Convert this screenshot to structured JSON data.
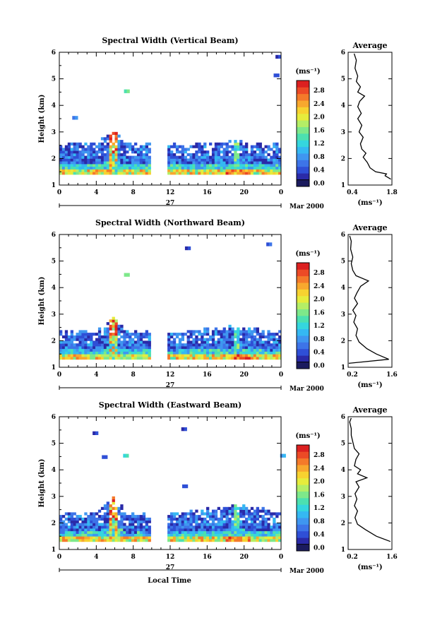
{
  "chart_data": [
    {
      "type": "heatmap",
      "title": "Spectral Width (Vertical Beam)",
      "ylabel": "Height (km)",
      "ylim": [
        1,
        6
      ],
      "xlim": [
        0,
        24
      ],
      "x_ticks": [
        "0",
        "4",
        "8",
        "12",
        "16",
        "20",
        "0"
      ],
      "y_ticks": [
        "1",
        "2",
        "3",
        "4",
        "5",
        "6"
      ],
      "date_label": "27",
      "date_suffix": "Mar 2000",
      "data_gap": [
        9.8,
        11.5
      ],
      "tops": [
        {
          "x": 0,
          "h": 2.5
        },
        {
          "x": 4,
          "h": 2.5
        },
        {
          "x": 5.6,
          "h": 3.1
        },
        {
          "x": 7.2,
          "h": 2.5
        },
        {
          "x": 12,
          "h": 2.45
        },
        {
          "x": 18.5,
          "h": 2.55
        },
        {
          "x": 23.8,
          "h": 2.5
        }
      ],
      "bottoms": [
        {
          "x": 0,
          "h": 1.4
        },
        {
          "x": 23.9,
          "h": 1.4
        }
      ],
      "blobs": [
        {
          "x": 7.0,
          "h": 4.5,
          "v": 1.4
        },
        {
          "x": 1.4,
          "h": 3.5,
          "v": 0.6
        },
        {
          "x": 23.4,
          "h": 5.8,
          "v": 0.3
        },
        {
          "x": 23.2,
          "h": 5.1,
          "v": 0.4
        }
      ],
      "colorbar": {
        "label": "(ms⁻¹)",
        "ticks": [
          "2.8",
          "2.4",
          "2.0",
          "1.6",
          "1.2",
          "0.8",
          "0.4",
          "0.0"
        ],
        "max": 3.0
      },
      "profile": {
        "title": "Average",
        "xlabel": "(ms⁻¹)",
        "x_ticks": [
          "0.4",
          "1.8"
        ],
        "xlim": [
          0.2,
          1.8
        ],
        "ylim": [
          1,
          6
        ],
        "points": [
          [
            1.76,
            1.22
          ],
          [
            1.55,
            1.35
          ],
          [
            1.6,
            1.42
          ],
          [
            1.2,
            1.5
          ],
          [
            1.0,
            1.65
          ],
          [
            0.9,
            1.85
          ],
          [
            0.75,
            2.05
          ],
          [
            0.85,
            2.2
          ],
          [
            0.7,
            2.35
          ],
          [
            0.65,
            2.55
          ],
          [
            0.75,
            2.8
          ],
          [
            0.6,
            3.0
          ],
          [
            0.7,
            3.25
          ],
          [
            0.55,
            3.5
          ],
          [
            0.68,
            3.7
          ],
          [
            0.55,
            3.95
          ],
          [
            0.62,
            4.15
          ],
          [
            0.8,
            4.35
          ],
          [
            0.55,
            4.5
          ],
          [
            0.65,
            4.7
          ],
          [
            0.5,
            4.9
          ],
          [
            0.55,
            5.1
          ],
          [
            0.45,
            5.4
          ],
          [
            0.5,
            5.7
          ],
          [
            0.42,
            5.95
          ]
        ]
      }
    },
    {
      "type": "heatmap",
      "title": "Spectral Width (Northward Beam)",
      "ylabel": "Height (km)",
      "ylim": [
        1,
        6
      ],
      "xlim": [
        0,
        24
      ],
      "x_ticks": [
        "0",
        "4",
        "8",
        "12",
        "16",
        "20",
        "0"
      ],
      "y_ticks": [
        "1",
        "2",
        "3",
        "4",
        "5",
        "6"
      ],
      "date_label": "27",
      "date_suffix": "Mar 2000",
      "data_gap": [
        9.8,
        11.5
      ],
      "tops": [
        {
          "x": 0,
          "h": 2.3
        },
        {
          "x": 4,
          "h": 2.3
        },
        {
          "x": 5.8,
          "h": 2.85
        },
        {
          "x": 7.2,
          "h": 2.3
        },
        {
          "x": 12,
          "h": 2.3
        },
        {
          "x": 19.2,
          "h": 2.45
        },
        {
          "x": 23.8,
          "h": 2.3
        }
      ],
      "bottoms": [
        {
          "x": 0,
          "h": 1.3
        },
        {
          "x": 23.9,
          "h": 1.3
        }
      ],
      "blobs": [
        {
          "x": 7.0,
          "h": 4.45,
          "v": 1.5
        },
        {
          "x": 13.6,
          "h": 5.45,
          "v": 0.3
        },
        {
          "x": 22.4,
          "h": 5.6,
          "v": 0.5
        }
      ],
      "colorbar": {
        "label": "(ms⁻¹)",
        "ticks": [
          "2.8",
          "2.4",
          "2.0",
          "1.6",
          "1.2",
          "0.8",
          "0.4",
          "0.0"
        ],
        "max": 3.0
      },
      "profile": {
        "title": "Average",
        "xlabel": "(ms⁻¹)",
        "x_ticks": [
          "0.2",
          "1.6"
        ],
        "xlim": [
          0.2,
          1.6
        ],
        "ylim": [
          1,
          6
        ],
        "points": [
          [
            0.22,
            1.15
          ],
          [
            1.5,
            1.3
          ],
          [
            1.1,
            1.5
          ],
          [
            0.8,
            1.7
          ],
          [
            0.55,
            1.95
          ],
          [
            0.45,
            2.2
          ],
          [
            0.5,
            2.45
          ],
          [
            0.38,
            2.7
          ],
          [
            0.45,
            2.95
          ],
          [
            0.35,
            3.15
          ],
          [
            0.5,
            3.4
          ],
          [
            0.4,
            3.6
          ],
          [
            0.48,
            3.8
          ],
          [
            0.6,
            4.05
          ],
          [
            0.85,
            4.25
          ],
          [
            0.45,
            4.45
          ],
          [
            0.35,
            4.65
          ],
          [
            0.3,
            4.9
          ],
          [
            0.35,
            5.15
          ],
          [
            0.28,
            5.45
          ],
          [
            0.3,
            5.75
          ],
          [
            0.25,
            5.95
          ]
        ]
      }
    },
    {
      "type": "heatmap",
      "title": "Spectral Width (Eastward Beam)",
      "ylabel": "Height (km)",
      "ylim": [
        1,
        6
      ],
      "xlim": [
        0,
        24
      ],
      "x_ticks": [
        "0",
        "4",
        "8",
        "12",
        "16",
        "20",
        "0"
      ],
      "y_ticks": [
        "1",
        "2",
        "3",
        "4",
        "5",
        "6"
      ],
      "date_label": "27",
      "date_suffix": "Mar 2000",
      "data_gap": [
        9.8,
        11.5
      ],
      "tops": [
        {
          "x": 0,
          "h": 2.3
        },
        {
          "x": 4,
          "h": 2.35
        },
        {
          "x": 5.7,
          "h": 3.0
        },
        {
          "x": 7.2,
          "h": 2.3
        },
        {
          "x": 12,
          "h": 2.3
        },
        {
          "x": 19.5,
          "h": 2.65
        },
        {
          "x": 23.8,
          "h": 2.3
        }
      ],
      "bottoms": [
        {
          "x": 0,
          "h": 1.3
        },
        {
          "x": 23.9,
          "h": 1.3
        }
      ],
      "blobs": [
        {
          "x": 3.6,
          "h": 5.35,
          "v": 0.3
        },
        {
          "x": 6.9,
          "h": 4.5,
          "v": 1.3
        },
        {
          "x": 4.6,
          "h": 4.45,
          "v": 0.4
        },
        {
          "x": 13.2,
          "h": 5.5,
          "v": 0.3
        },
        {
          "x": 13.3,
          "h": 3.35,
          "v": 0.4
        },
        {
          "x": 23.9,
          "h": 4.5,
          "v": 0.9
        }
      ],
      "colorbar": {
        "label": "(ms⁻¹)",
        "ticks": [
          "2.8",
          "2.4",
          "2.0",
          "1.6",
          "1.2",
          "0.8",
          "0.4",
          "0.0"
        ],
        "max": 3.0
      },
      "profile": {
        "title": "Average",
        "xlabel": "(ms⁻¹)",
        "x_ticks": [
          "0.2",
          "1.6"
        ],
        "xlim": [
          0.2,
          1.6
        ],
        "ylim": [
          1,
          6
        ],
        "points": [
          [
            1.55,
            1.3
          ],
          [
            1.1,
            1.5
          ],
          [
            0.75,
            1.75
          ],
          [
            0.5,
            1.95
          ],
          [
            0.42,
            2.2
          ],
          [
            0.5,
            2.45
          ],
          [
            0.4,
            2.65
          ],
          [
            0.48,
            2.9
          ],
          [
            0.42,
            3.1
          ],
          [
            0.55,
            3.35
          ],
          [
            0.45,
            3.55
          ],
          [
            0.8,
            3.7
          ],
          [
            0.5,
            3.85
          ],
          [
            0.6,
            4.0
          ],
          [
            0.4,
            4.15
          ],
          [
            0.45,
            4.4
          ],
          [
            0.55,
            4.6
          ],
          [
            0.4,
            4.8
          ],
          [
            0.35,
            5.05
          ],
          [
            0.3,
            5.3
          ],
          [
            0.3,
            5.55
          ],
          [
            0.25,
            5.8
          ],
          [
            0.3,
            5.95
          ]
        ]
      }
    }
  ],
  "footer": {
    "xlabel": "Local Time"
  }
}
